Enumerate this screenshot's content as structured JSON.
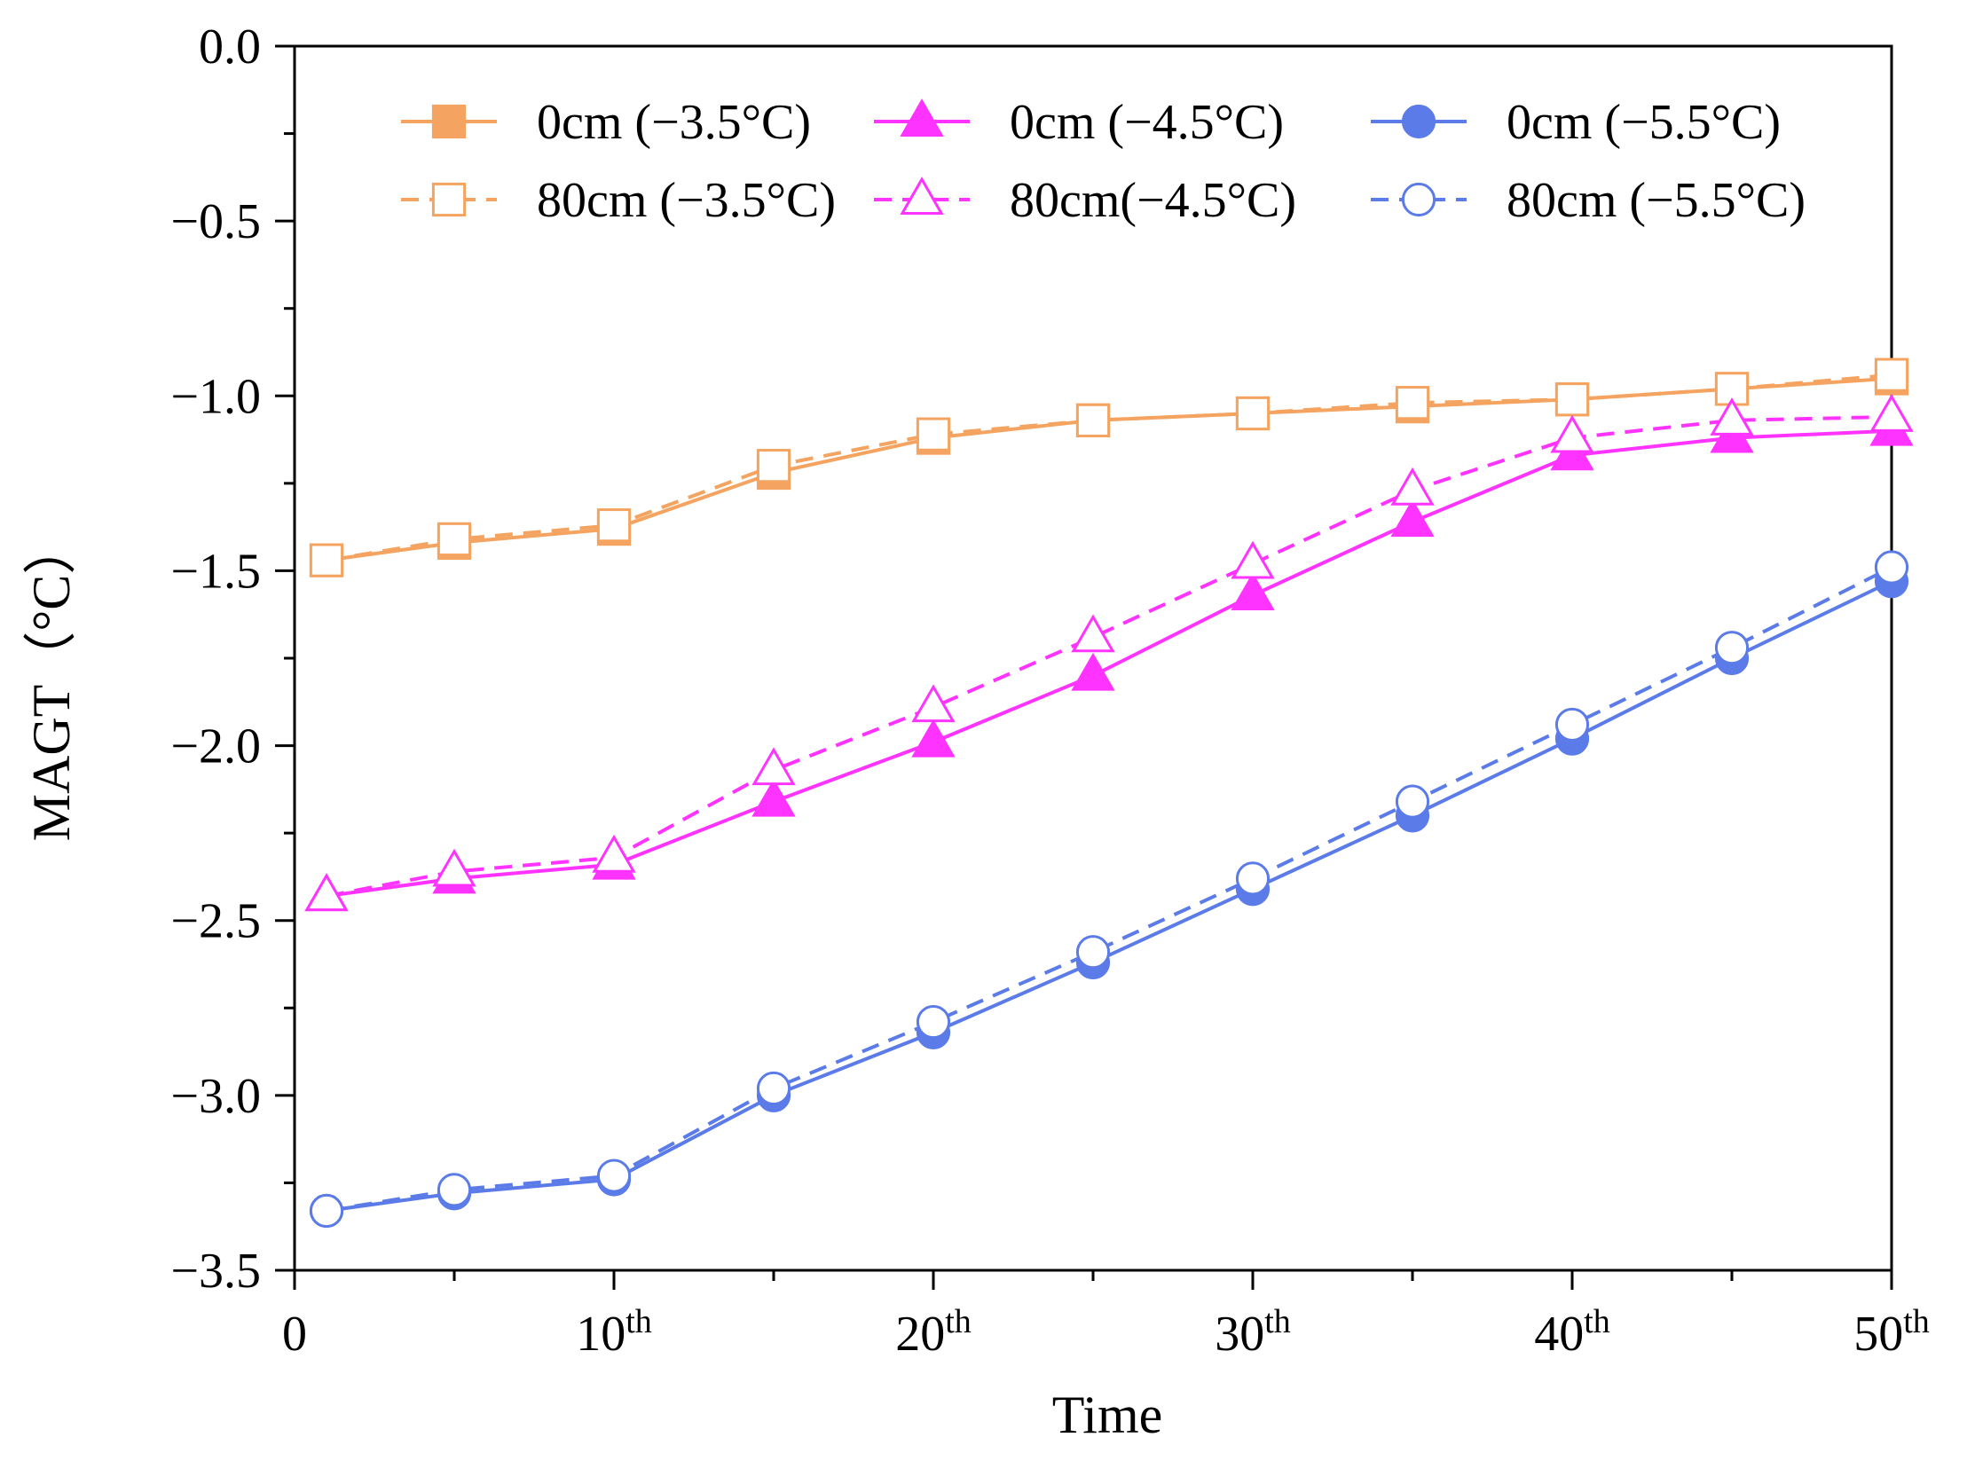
{
  "chart_data": {
    "type": "line",
    "title": "",
    "xlabel": "Time",
    "ylabel": "MAGT（°C）",
    "xlim": [
      0,
      50
    ],
    "ylim": [
      -3.5,
      0.0
    ],
    "grid": false,
    "legend_position": "top-right",
    "x_ticks": [
      {
        "value": 0,
        "base": "0",
        "sup": ""
      },
      {
        "value": 10,
        "base": "10",
        "sup": "th"
      },
      {
        "value": 20,
        "base": "20",
        "sup": "th"
      },
      {
        "value": 30,
        "base": "30",
        "sup": "th"
      },
      {
        "value": 40,
        "base": "40",
        "sup": "th"
      },
      {
        "value": 50,
        "base": "50",
        "sup": "th"
      }
    ],
    "y_ticks": [
      {
        "value": 0.0,
        "label": "0.0"
      },
      {
        "value": -0.5,
        "label": "−0.5"
      },
      {
        "value": -1.0,
        "label": "−1.0"
      },
      {
        "value": -1.5,
        "label": "−1.5"
      },
      {
        "value": -2.0,
        "label": "−2.0"
      },
      {
        "value": -2.5,
        "label": "−2.5"
      },
      {
        "value": -3.0,
        "label": "−3.0"
      },
      {
        "value": -3.5,
        "label": "−3.5"
      }
    ],
    "x": [
      1,
      5,
      10,
      15,
      20,
      25,
      30,
      35,
      40,
      45,
      50
    ],
    "series": [
      {
        "name": "0cm (−3.5°C)",
        "color": "#F4A460",
        "dash": "solid",
        "marker": "square",
        "filled": true,
        "values": [
          -1.47,
          -1.42,
          -1.38,
          -1.22,
          -1.12,
          -1.07,
          -1.05,
          -1.03,
          -1.01,
          -0.98,
          -0.95
        ]
      },
      {
        "name": "0cm (−4.5°C)",
        "color": "#FF33FF",
        "dash": "solid",
        "marker": "triangle",
        "filled": true,
        "values": [
          -2.43,
          -2.38,
          -2.34,
          -2.16,
          -1.99,
          -1.8,
          -1.57,
          -1.36,
          -1.17,
          -1.12,
          -1.1
        ]
      },
      {
        "name": "0cm (−5.5°C)",
        "color": "#5B7BE8",
        "dash": "solid",
        "marker": "circle",
        "filled": true,
        "values": [
          -3.33,
          -3.28,
          -3.24,
          -3.0,
          -2.82,
          -2.62,
          -2.41,
          -2.2,
          -1.98,
          -1.75,
          -1.53
        ]
      },
      {
        "name": "80cm (−3.5°C)",
        "color": "#F4A460",
        "dash": "dashed",
        "marker": "square",
        "filled": false,
        "values": [
          -1.47,
          -1.41,
          -1.37,
          -1.2,
          -1.11,
          -1.07,
          -1.05,
          -1.02,
          -1.01,
          -0.98,
          -0.94
        ]
      },
      {
        "name": "80cm(−4.5°C)",
        "color": "#FF33FF",
        "dash": "dashed",
        "marker": "triangle",
        "filled": false,
        "values": [
          -2.43,
          -2.36,
          -2.32,
          -2.07,
          -1.89,
          -1.69,
          -1.48,
          -1.27,
          -1.12,
          -1.07,
          -1.06
        ]
      },
      {
        "name": "80cm (−5.5°C)",
        "color": "#5B7BE8",
        "dash": "dashed",
        "marker": "circle",
        "filled": false,
        "values": [
          -3.33,
          -3.27,
          -3.23,
          -2.98,
          -2.79,
          -2.59,
          -2.38,
          -2.16,
          -1.94,
          -1.72,
          -1.49
        ]
      }
    ]
  }
}
